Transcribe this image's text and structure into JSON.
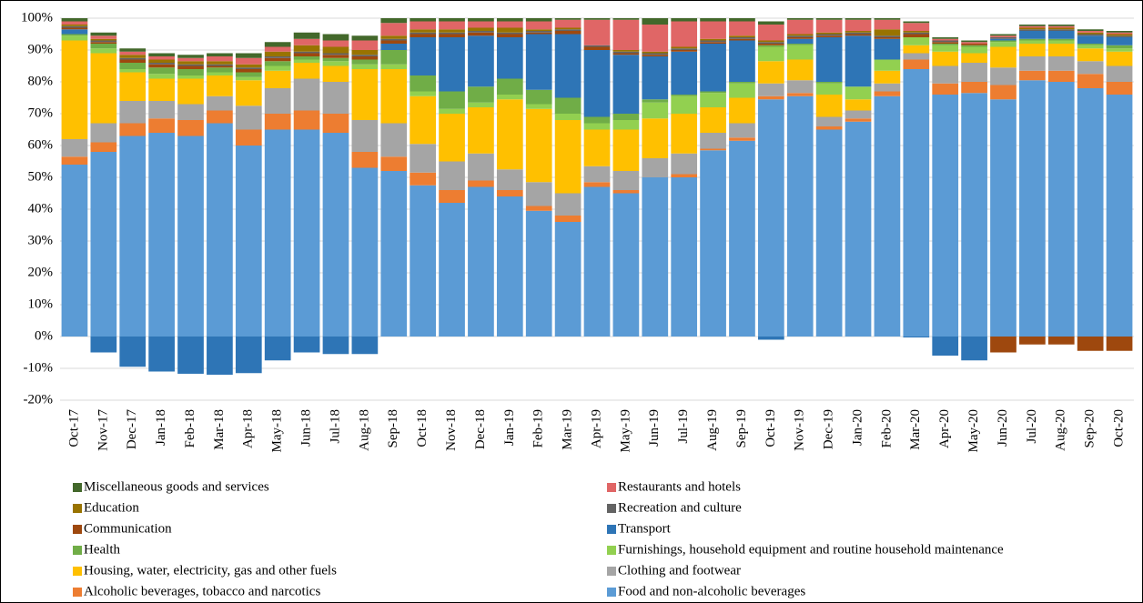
{
  "chart_data": {
    "type": "bar",
    "stacked": true,
    "grid": true,
    "categories": [
      "Oct-17",
      "Nov-17",
      "Dec-17",
      "Jan-18",
      "Feb-18",
      "Mar-18",
      "Apr-18",
      "May-18",
      "Jun-18",
      "Jul-18",
      "Aug-18",
      "Sep-18",
      "Oct-18",
      "Nov-18",
      "Dec-18",
      "Jan-19",
      "Feb-19",
      "Mar-19",
      "Apr-19",
      "May-19",
      "Jun-19",
      "Jul-19",
      "Aug-19",
      "Sep-19",
      "Oct-19",
      "Nov-19",
      "Dec-19",
      "Jan-20",
      "Feb-20",
      "Mar-20",
      "Apr-20",
      "May-20",
      "Jun-20",
      "Jul-20",
      "Aug-20",
      "Sep-20",
      "Oct-20"
    ],
    "ylim": [
      -20,
      100
    ],
    "yticks": [
      {
        "value": -20,
        "label": "-20%"
      },
      {
        "value": -10,
        "label": "-10%"
      },
      {
        "value": 0,
        "label": "0%"
      },
      {
        "value": 10,
        "label": "10%"
      },
      {
        "value": 20,
        "label": "20%"
      },
      {
        "value": 30,
        "label": "30%"
      },
      {
        "value": 40,
        "label": "40%"
      },
      {
        "value": 50,
        "label": "50%"
      },
      {
        "value": 60,
        "label": "60%"
      },
      {
        "value": 70,
        "label": "70%"
      },
      {
        "value": 80,
        "label": "80%"
      },
      {
        "value": 90,
        "label": "90%"
      },
      {
        "value": 100,
        "label": "100%"
      }
    ],
    "series": [
      {
        "name": "Food and non-alcoholic beverages",
        "color": "#5b9bd5",
        "values": [
          54,
          58,
          63,
          64,
          63,
          67,
          60,
          65,
          65,
          64,
          53,
          52,
          47.5,
          42,
          47,
          44,
          39.5,
          36,
          47,
          45,
          50,
          50,
          58.5,
          61.5,
          74.5,
          75.5,
          65,
          67.5,
          75.5,
          84,
          76,
          76.5,
          74.5,
          80.5,
          80,
          78,
          76
        ]
      },
      {
        "name": "Alcoholic beverages, tobacco and narcotics",
        "color": "#ed7d31",
        "values": [
          2.5,
          3,
          4,
          4.5,
          5,
          4,
          5,
          5,
          6,
          6,
          5,
          4.5,
          4,
          4,
          2,
          2,
          1.5,
          2,
          1.5,
          1,
          0,
          1,
          0.5,
          1,
          1,
          1,
          1,
          1,
          1.5,
          3,
          3.5,
          3.5,
          4.5,
          3,
          3.5,
          4.5,
          4
        ]
      },
      {
        "name": "Clothing and footwear",
        "color": "#a5a5a5",
        "values": [
          5.5,
          6,
          7,
          5.5,
          5,
          4.5,
          7.5,
          8,
          10,
          10,
          10,
          10.5,
          9,
          9,
          8.5,
          6.5,
          7.5,
          7,
          5,
          6,
          6,
          6.5,
          5,
          4.5,
          4,
          4,
          3,
          2.5,
          2.5,
          2,
          5.5,
          6,
          5.5,
          4.5,
          4.5,
          4,
          5
        ]
      },
      {
        "name": "Housing, water, electricity, gas and other fuels",
        "color": "#ffc000",
        "values": [
          31,
          22,
          9,
          7,
          8,
          6.5,
          8,
          5.5,
          5,
          5,
          16,
          17,
          15,
          15,
          14.5,
          22,
          23,
          23,
          11.5,
          13,
          12.5,
          12.5,
          8,
          8,
          7,
          6.5,
          7,
          3.5,
          4,
          2.5,
          4.5,
          3,
          6.5,
          4,
          4,
          4,
          4.5
        ]
      },
      {
        "name": "Furnishings, household equipment and routine household maintenance",
        "color": "#92d050",
        "values": [
          1.5,
          1.5,
          1,
          1.5,
          1,
          1,
          1,
          1.5,
          1,
          1.5,
          1.5,
          1.5,
          1.5,
          1.5,
          1.5,
          1.5,
          1.5,
          2,
          2,
          3,
          5,
          5.5,
          4.5,
          4.5,
          4.5,
          4.5,
          3.5,
          4,
          3.5,
          2.5,
          2,
          2,
          1.5,
          1,
          1,
          1,
          1
        ]
      },
      {
        "name": "Health",
        "color": "#70ad47",
        "values": [
          0.5,
          1.5,
          2,
          2,
          2,
          1.5,
          1.5,
          1.5,
          1,
          1,
          1.5,
          4.5,
          5,
          5.5,
          5,
          5,
          4.5,
          5,
          2,
          2,
          1,
          0.5,
          0.5,
          0.5,
          0.5,
          0.5,
          0.5,
          0,
          0,
          0,
          0.5,
          0.5,
          0.5,
          0.5,
          0.5,
          0.5,
          1
        ]
      },
      {
        "name": "Transport",
        "color": "#2e75b6",
        "values": [
          1.5,
          -5,
          -9.5,
          -11,
          -11.7,
          -12,
          -11.5,
          -7.5,
          -5,
          -5.5,
          -5.5,
          2,
          12,
          17,
          16,
          13,
          17.5,
          20,
          21,
          18.5,
          13.5,
          13.5,
          15,
          13,
          -1,
          1.5,
          14,
          16,
          6.5,
          -0.3,
          -6,
          -7.5,
          0.5,
          2.5,
          2.5,
          2.5,
          2.5
        ]
      },
      {
        "name": "Communication",
        "color": "#9e480e",
        "values": [
          0.5,
          0.5,
          1,
          1,
          1,
          0.5,
          1,
          1,
          1,
          1,
          1,
          1,
          1,
          1,
          1,
          1,
          0.5,
          1,
          1,
          0.5,
          0.5,
          0.5,
          0.5,
          0.5,
          0.5,
          0.5,
          0.5,
          0.5,
          0.5,
          1,
          0.5,
          0.5,
          -5,
          -2.5,
          -2.5,
          -4.5,
          -4.5
        ]
      },
      {
        "name": "Recreation and culture",
        "color": "#636363",
        "values": [
          0.5,
          0.5,
          0.5,
          0.5,
          0.5,
          0.5,
          0.5,
          0.5,
          0.5,
          0.5,
          0.5,
          0.5,
          0.5,
          0.5,
          0.5,
          0.5,
          0.5,
          0.5,
          0.5,
          0.5,
          0.5,
          0.5,
          0.5,
          0.5,
          0.5,
          0.5,
          0.5,
          0.5,
          0.5,
          0.5,
          0.5,
          0,
          0.5,
          0.5,
          0.5,
          0.5,
          0.5
        ]
      },
      {
        "name": "Education",
        "color": "#997300",
        "values": [
          0.5,
          0.5,
          1,
          1,
          1,
          1,
          1,
          1.5,
          2,
          2,
          1.5,
          1,
          1,
          1,
          1,
          1.5,
          0.5,
          0.5,
          0,
          0.5,
          0.5,
          0.5,
          0.5,
          0.5,
          0.5,
          0.5,
          0.5,
          0.5,
          2,
          0.5,
          0,
          0,
          0,
          0.5,
          0.5,
          0.5,
          0.5
        ]
      },
      {
        "name": "Restaurants and hotels",
        "color": "#e06666",
        "values": [
          1,
          1,
          1,
          1,
          1,
          1.5,
          2,
          1.5,
          2,
          2,
          3,
          4,
          2.5,
          2.5,
          2,
          2,
          2.5,
          2.5,
          8,
          9.5,
          8.5,
          8,
          5.5,
          4.5,
          5,
          4.5,
          4,
          3.5,
          3,
          2.5,
          0.5,
          0.5,
          0.5,
          0.5,
          0.5,
          0.5,
          0.5
        ]
      },
      {
        "name": "Miscellaneous goods and services",
        "color": "#43682b",
        "values": [
          1,
          1,
          1,
          1,
          1,
          1,
          1.5,
          1.5,
          2,
          2,
          1.5,
          1.5,
          1,
          1,
          1,
          1,
          1,
          0.5,
          0.5,
          0.5,
          2,
          1,
          1,
          1,
          1,
          0.5,
          0.5,
          0.5,
          0.5,
          0.5,
          0.5,
          0.5,
          0.5,
          0.5,
          0.5,
          0.5,
          0.5
        ]
      }
    ]
  }
}
